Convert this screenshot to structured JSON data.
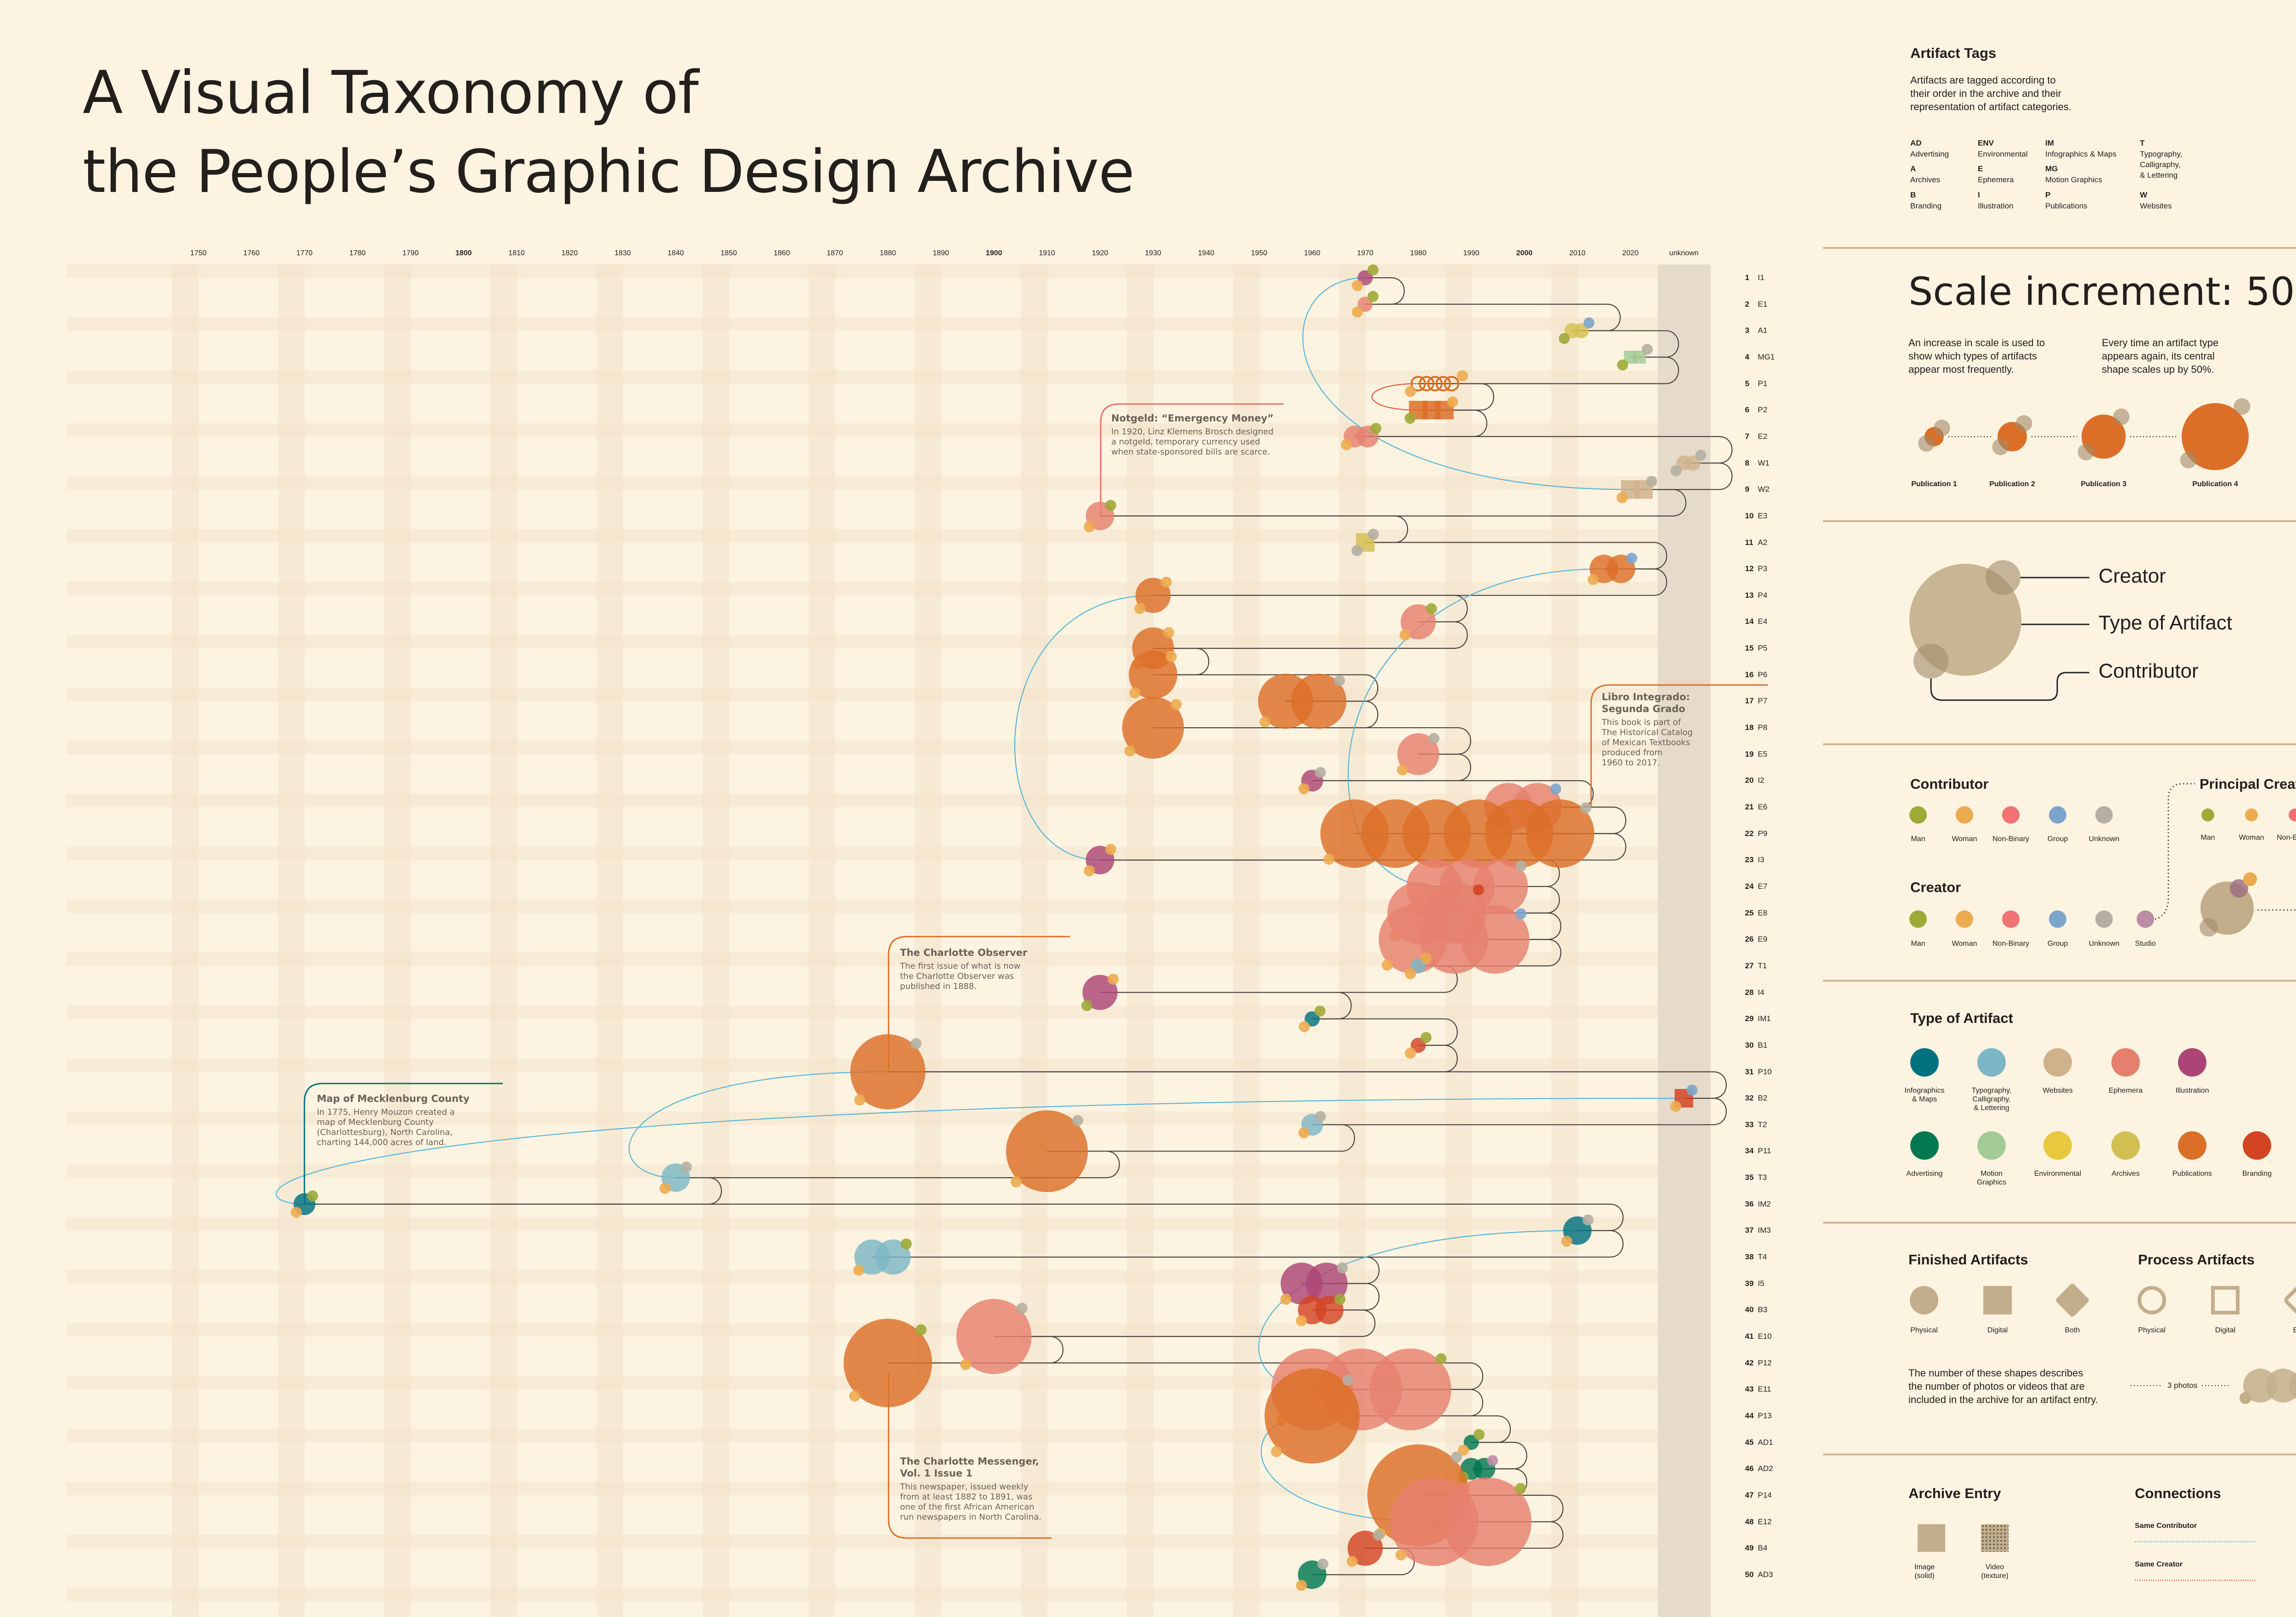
{
  "title": {
    "line1": "A Visual Taxonomy of",
    "line2": "the People’s Graphic Design Archive"
  },
  "axis": {
    "years": [
      "1750",
      "1760",
      "1770",
      "1780",
      "1790",
      "1800",
      "1810",
      "1820",
      "1830",
      "1840",
      "1850",
      "1860",
      "1870",
      "1880",
      "1890",
      "1900",
      "1910",
      "1920",
      "1930",
      "1940",
      "1950",
      "1960",
      "1970",
      "1980",
      "1990",
      "2000",
      "2010",
      "2020"
    ],
    "bold_years": [
      "1800",
      "1900",
      "2000"
    ],
    "unknown": "unknown"
  },
  "colors": {
    "infographics": "#00727F",
    "typography": "#7CB7C5",
    "websites": "#CFB28C",
    "ephemera": "#E6806E",
    "illustration": "#AC4575",
    "advertising": "#017850",
    "motion-graphics": "#A3CB95",
    "environmental": "#E8C83F",
    "archives": "#D3C052",
    "publications": "#DC6F27",
    "branding": "#D34423",
    "man": "#9DAA36",
    "woman": "#EDAB4F",
    "non-binary": "#F07272",
    "group": "#7CA5CD",
    "unknown": "#B5AFA3",
    "studio": "#BB8DA5",
    "neutral": "#C2AE8B",
    "same_contributor": "#55B6D8",
    "same_creator": "#E5563A",
    "line": "#4A4540"
  },
  "entries": [
    {
      "n": "1",
      "tag": "I1",
      "type": "illustration",
      "year": 1970,
      "count": 1,
      "shape": "physical",
      "creator": "man",
      "contributor": "woman"
    },
    {
      "n": "2",
      "tag": "E1",
      "type": "ephemera",
      "year": 1970,
      "count": 1,
      "shape": "physical",
      "creator": "man",
      "contributor": "woman"
    },
    {
      "n": "3",
      "tag": "A1",
      "type": "archives",
      "year": 2009,
      "count": 2,
      "shape": "physical",
      "creator": "group",
      "contributor": "man"
    },
    {
      "n": "4",
      "tag": "MG1",
      "type": "motion-graphics",
      "year": 2020,
      "count": 2,
      "shape": "digital",
      "creator": "unknown",
      "contributor": "man"
    },
    {
      "n": "5",
      "tag": "P1",
      "type": "publications",
      "year": 1980,
      "count": 5,
      "shape": "process-physical",
      "creator": "woman",
      "contributor": "woman"
    },
    {
      "n": "6",
      "tag": "P2",
      "type": "publications",
      "year": 1980,
      "count": 3,
      "shape": "digital",
      "creator": "woman",
      "contributor": "man"
    },
    {
      "n": "7",
      "tag": "E2",
      "type": "ephemera",
      "year": 1968,
      "count": 2,
      "shape": "physical",
      "creator": "man",
      "contributor": "woman"
    },
    {
      "n": "8",
      "tag": "W1",
      "type": "websites",
      "year": "unknown",
      "count": 2,
      "shape": "physical",
      "creator": "unknown",
      "contributor": "unknown"
    },
    {
      "n": "9",
      "tag": "W2",
      "type": "websites",
      "year": 2020,
      "count": 2,
      "shape": "digital",
      "creator": "unknown",
      "contributor": "woman"
    },
    {
      "n": "10",
      "tag": "E3",
      "type": "ephemera",
      "year": 1920,
      "count": 1,
      "shape": "physical",
      "creator": "man",
      "contributor": "woman"
    },
    {
      "n": "11",
      "tag": "A2",
      "type": "archives",
      "year": 1970,
      "count": 1,
      "shape": "digital",
      "creator": "unknown",
      "contributor": "unknown"
    },
    {
      "n": "12",
      "tag": "P3",
      "type": "publications",
      "year": 2015,
      "count": 2,
      "shape": "physical",
      "creator": "group",
      "contributor": "woman"
    },
    {
      "n": "13",
      "tag": "P4",
      "type": "publications",
      "year": 1930,
      "count": 1,
      "shape": "physical",
      "creator": "woman",
      "contributor": "woman"
    },
    {
      "n": "14",
      "tag": "E4",
      "type": "ephemera",
      "year": 1980,
      "count": 1,
      "shape": "physical",
      "creator": "man",
      "contributor": "woman"
    },
    {
      "n": "15",
      "tag": "P5",
      "type": "publications",
      "year": 1930,
      "count": 1,
      "shape": "physical",
      "creator": "woman",
      "contributor": "woman"
    },
    {
      "n": "16",
      "tag": "P6",
      "type": "publications",
      "year": 1930,
      "count": 1,
      "shape": "physical",
      "creator": "woman",
      "contributor": "woman"
    },
    {
      "n": "17",
      "tag": "P7",
      "type": "publications",
      "year": 1955,
      "count": 2,
      "shape": "physical",
      "creator": "unknown",
      "contributor": "woman"
    },
    {
      "n": "18",
      "tag": "P8",
      "type": "publications",
      "year": 1930,
      "count": 1,
      "shape": "physical",
      "creator": "woman",
      "contributor": "woman"
    },
    {
      "n": "19",
      "tag": "E5",
      "type": "ephemera",
      "year": 1980,
      "count": 1,
      "shape": "physical",
      "creator": "unknown",
      "contributor": "woman"
    },
    {
      "n": "20",
      "tag": "I2",
      "type": "illustration",
      "year": 1960,
      "count": 1,
      "shape": "physical",
      "creator": "unknown",
      "contributor": "woman"
    },
    {
      "n": "21",
      "tag": "E6",
      "type": "ephemera",
      "year": 1997,
      "count": 2,
      "shape": "physical",
      "creator": "group",
      "contributor": "woman"
    },
    {
      "n": "22",
      "tag": "P9",
      "type": "publications",
      "year": 1968,
      "count": 6,
      "shape": "physical",
      "creator": "unknown",
      "contributor": "woman"
    },
    {
      "n": "23",
      "tag": "I3",
      "type": "illustration",
      "year": 1920,
      "count": 1,
      "shape": "physical",
      "creator": "woman",
      "contributor": "woman"
    },
    {
      "n": "24",
      "tag": "E7",
      "type": "ephemera",
      "year": 1983,
      "count": 3,
      "shape": "physical",
      "creator": "unknown",
      "contributor": "woman"
    },
    {
      "n": "25",
      "tag": "E8",
      "type": "ephemera",
      "year": 1980,
      "count": 2,
      "shape": "physical",
      "creator": "branding",
      "contributor": "woman"
    },
    {
      "n": "26",
      "tag": "E9",
      "type": "ephemera",
      "year": 1979,
      "count": 3,
      "shape": "physical",
      "creator": "group",
      "contributor": "woman"
    },
    {
      "n": "27",
      "tag": "T1",
      "type": "typography",
      "year": 1980,
      "count": 1,
      "shape": "physical",
      "creator": "woman",
      "contributor": "woman"
    },
    {
      "n": "28",
      "tag": "I4",
      "type": "illustration",
      "year": 1920,
      "count": 1,
      "shape": "physical",
      "creator": "woman",
      "contributor": "man"
    },
    {
      "n": "29",
      "tag": "IM1",
      "type": "infographics",
      "year": 1960,
      "count": 1,
      "shape": "physical",
      "creator": "man",
      "contributor": "woman"
    },
    {
      "n": "30",
      "tag": "B1",
      "type": "branding",
      "year": 1980,
      "count": 1,
      "shape": "physical",
      "creator": "man",
      "contributor": "woman"
    },
    {
      "n": "31",
      "tag": "P10",
      "type": "publications",
      "year": 1880,
      "count": 1,
      "shape": "physical",
      "creator": "unknown",
      "contributor": "woman"
    },
    {
      "n": "32",
      "tag": "B2",
      "type": "branding",
      "year": "unknown",
      "count": 1,
      "shape": "digital",
      "creator": "group",
      "contributor": "woman"
    },
    {
      "n": "33",
      "tag": "T2",
      "type": "typography",
      "year": 1960,
      "count": 1,
      "shape": "physical",
      "creator": "unknown",
      "contributor": "woman"
    },
    {
      "n": "34",
      "tag": "P11",
      "type": "publications",
      "year": 1910,
      "count": 1,
      "shape": "physical",
      "creator": "unknown",
      "contributor": "woman"
    },
    {
      "n": "35",
      "tag": "T3",
      "type": "typography",
      "year": 1840,
      "count": 1,
      "shape": "physical",
      "creator": "unknown",
      "contributor": "woman"
    },
    {
      "n": "36",
      "tag": "IM2",
      "type": "infographics",
      "year": 1770,
      "count": 1,
      "shape": "physical",
      "creator": "man",
      "contributor": "woman"
    },
    {
      "n": "37",
      "tag": "IM3",
      "type": "infographics",
      "year": 2010,
      "count": 1,
      "shape": "physical",
      "creator": "unknown",
      "contributor": "woman"
    },
    {
      "n": "38",
      "tag": "T4",
      "type": "typography",
      "year": 1877,
      "count": 2,
      "shape": "physical",
      "creator": "man",
      "contributor": "woman"
    },
    {
      "n": "39",
      "tag": "I5",
      "type": "illustration",
      "year": 1958,
      "count": 2,
      "shape": "physical",
      "creator": "unknown",
      "contributor": "woman"
    },
    {
      "n": "40",
      "tag": "B3",
      "type": "branding",
      "year": 1960,
      "count": 2,
      "shape": "physical",
      "creator": "man",
      "contributor": "woman"
    },
    {
      "n": "41",
      "tag": "E10",
      "type": "ephemera",
      "year": 1900,
      "count": 1,
      "shape": "physical",
      "creator": "unknown",
      "contributor": "woman"
    },
    {
      "n": "42",
      "tag": "P12",
      "type": "publications",
      "year": 1880,
      "count": 1,
      "shape": "physical",
      "creator": "man",
      "contributor": "woman"
    },
    {
      "n": "43",
      "tag": "E11",
      "type": "ephemera",
      "year": 1960,
      "count": 3,
      "shape": "physical",
      "creator": "man",
      "contributor": "woman"
    },
    {
      "n": "44",
      "tag": "P13",
      "type": "publications",
      "year": 1960,
      "count": 1,
      "shape": "physical",
      "creator": "unknown",
      "contributor": "woman"
    },
    {
      "n": "45",
      "tag": "AD1",
      "type": "advertising",
      "year": 1990,
      "count": 1,
      "shape": "physical",
      "creator": "man",
      "contributor": "woman"
    },
    {
      "n": "46",
      "tag": "AD2",
      "type": "advertising",
      "year": 1990,
      "count": 2,
      "shape": "physical",
      "creator": "studio",
      "contributor": "man"
    },
    {
      "n": "47",
      "tag": "P14",
      "type": "publications",
      "year": 1980,
      "count": 1,
      "shape": "physical",
      "creator": "unknown",
      "contributor": "woman"
    },
    {
      "n": "48",
      "tag": "E12",
      "type": "ephemera",
      "year": 1983,
      "count": 2,
      "shape": "physical",
      "creator": "man",
      "contributor": "woman"
    },
    {
      "n": "49",
      "tag": "B4",
      "type": "branding",
      "year": 1970,
      "count": 1,
      "shape": "physical",
      "creator": "unknown",
      "contributor": "woman"
    },
    {
      "n": "50",
      "tag": "AD3",
      "type": "advertising",
      "year": 1960,
      "count": 1,
      "shape": "physical",
      "creator": "unknown",
      "contributor": "woman"
    }
  ],
  "connections": [
    {
      "from": 1,
      "to": 9,
      "kind": "same_contributor"
    },
    {
      "from": 13,
      "to": 23,
      "kind": "same_contributor"
    },
    {
      "from": 12,
      "to": 24,
      "kind": "same_contributor"
    },
    {
      "from": 31,
      "to": 35,
      "kind": "same_contributor"
    },
    {
      "from": 32,
      "to": 36,
      "kind": "same_contributor"
    },
    {
      "from": 37,
      "to": 43,
      "kind": "same_contributor"
    },
    {
      "from": 44,
      "to": 48,
      "kind": "same_contributor"
    },
    {
      "from": 5,
      "to": 6,
      "kind": "same_creator"
    }
  ],
  "annotations": [
    {
      "title": "Notgeld: “Emergency Money”",
      "lines": [
        "In 1920, Linz Klemens Brosch designed",
        "a notgeld, temporary currency used",
        "when state-sponsored bills are scarce."
      ],
      "color": "#E8706A"
    },
    {
      "title": "Libro Integrado:",
      "title2": "Segunda Grado",
      "lines": [
        "This book is part of",
        "The Historical Catalog",
        "of Mexican Textbooks",
        "produced from",
        "1960 to 2017."
      ],
      "color": "#DC6F27"
    },
    {
      "title": "The Charlotte Observer",
      "lines": [
        "The first issue of what is now",
        "the Charlotte Observer was",
        "published in 1888."
      ],
      "color": "#DC6F27"
    },
    {
      "title": "Map of Mecklenburg County",
      "lines": [
        "In 1775, Henry Mouzon created a",
        "map of Mecklenburg County",
        "(Charlottesburg), North Carolina,",
        "charting 144,000 acres of land."
      ],
      "color": "#00727F"
    },
    {
      "title": "The Charlotte Messenger,",
      "title2": "Vol. 1 Issue 1",
      "lines": [
        "This newspaper, issued weekly",
        "from at least 1882 to 1891, was",
        "one of the first African American",
        "run newspapers in North Carolina."
      ],
      "color": "#DC6F27"
    }
  ],
  "legend": {
    "tags": {
      "title": "Artifact Tags",
      "desc": [
        "Artifacts are tagged according to",
        "their order in the archive and their",
        "representation of artifact categories."
      ],
      "items": [
        {
          "code": "AD",
          "label": "Advertising"
        },
        {
          "code": "ENV",
          "label": "Environmental"
        },
        {
          "code": "IM",
          "label": "Infographics & Maps"
        },
        {
          "code": "T",
          "label": "Typography,\nCalligraphy,\n& Lettering"
        },
        {
          "code": "A",
          "label": "Archives"
        },
        {
          "code": "E",
          "label": "Ephemera"
        },
        {
          "code": "MG",
          "label": "Motion Graphics"
        },
        {
          "code": "B",
          "label": "Branding"
        },
        {
          "code": "I",
          "label": "Illustration"
        },
        {
          "code": "P",
          "label": "Publications"
        },
        {
          "code": "W",
          "label": "Websites"
        }
      ]
    },
    "scale": {
      "title": "Scale increment: 50%",
      "desc1": [
        "An increase in scale is used to",
        "show which types of artifacts",
        "appear most frequently."
      ],
      "desc2": [
        "Every time an artifact type",
        "appears again, its central",
        "shape scales up by 50%."
      ],
      "increment_percent": 50,
      "examples": [
        "Publication 1",
        "Publication 2",
        "Publication 3",
        "Publication 4"
      ]
    },
    "key": {
      "creator": "Creator",
      "type": "Type of Artifact",
      "contributor": "Contributor"
    },
    "contributor": {
      "title": "Contributor",
      "items": [
        {
          "label": "Man",
          "key": "man"
        },
        {
          "label": "Woman",
          "key": "woman"
        },
        {
          "label": "Non-Binary",
          "key": "non-binary"
        },
        {
          "label": "Group",
          "key": "group"
        },
        {
          "label": "Unknown",
          "key": "unknown"
        }
      ]
    },
    "creator": {
      "title": "Creator",
      "items": [
        {
          "label": "Man",
          "key": "man"
        },
        {
          "label": "Woman",
          "key": "woman"
        },
        {
          "label": "Non-Binary",
          "key": "non-binary"
        },
        {
          "label": "Group",
          "key": "group"
        },
        {
          "label": "Unknown",
          "key": "unknown"
        },
        {
          "label": "Studio",
          "key": "studio"
        }
      ]
    },
    "principal": {
      "title": "Principal Creator",
      "items": [
        {
          "label": "Man",
          "key": "man"
        },
        {
          "label": "Woman",
          "key": "woman"
        },
        {
          "label": "Non-Binary",
          "key": "non-binary"
        }
      ]
    },
    "types": {
      "title": "Type of Artifact",
      "items": [
        {
          "label": "Infographics\n& Maps",
          "key": "infographics"
        },
        {
          "label": "Typography,\nCalligraphy,\n& Lettering",
          "key": "typography"
        },
        {
          "label": "Websites",
          "key": "websites"
        },
        {
          "label": "Ephemera",
          "key": "ephemera"
        },
        {
          "label": "Illustration",
          "key": "illustration"
        },
        {
          "label": "Advertising",
          "key": "advertising"
        },
        {
          "label": "Motion\nGraphics",
          "key": "motion-graphics"
        },
        {
          "label": "Environmental",
          "key": "environmental"
        },
        {
          "label": "Archives",
          "key": "archives"
        },
        {
          "label": "Publications",
          "key": "publications"
        },
        {
          "label": "Branding",
          "key": "branding"
        }
      ]
    },
    "finished": {
      "title": "Finished Artifacts",
      "items": [
        "Physical",
        "Digital",
        "Both"
      ]
    },
    "process": {
      "title": "Process Artifacts",
      "items": [
        "Physical",
        "Digital",
        "Both"
      ]
    },
    "photos_note": [
      "The number of these shapes describes",
      "the number of photos or videos that are",
      "included in the archive for an artifact entry."
    ],
    "photos_example": "3 photos",
    "archive_entry": {
      "title": "Archive Entry",
      "image": "Image\n(solid)",
      "video": "Video\n(texture)"
    },
    "connections": {
      "title": "Connections",
      "same_contributor": "Same Contributor",
      "same_creator": "Same Creator"
    }
  }
}
